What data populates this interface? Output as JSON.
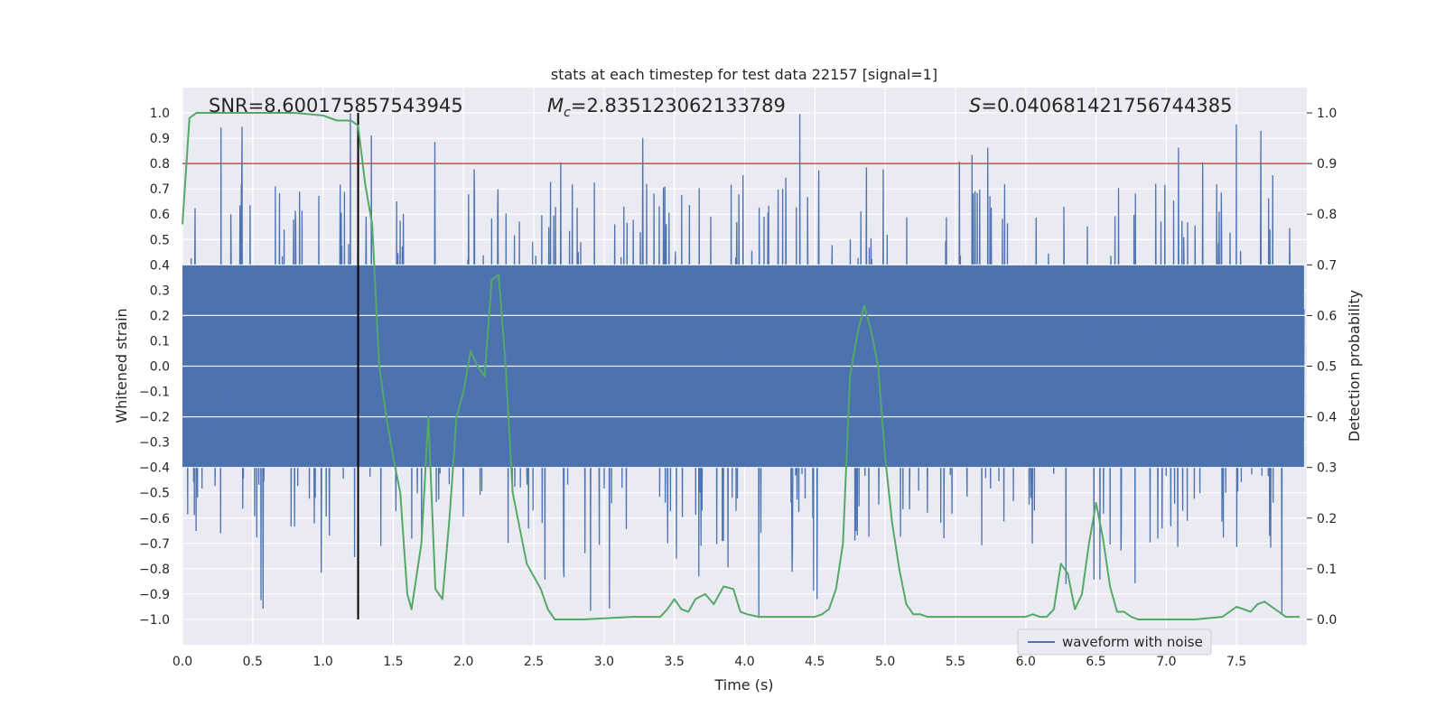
{
  "chart_data": {
    "type": "line",
    "title": "stats at each timestep for test data 22157 [signal=1]",
    "xlabel": "Time (s)",
    "ylabel": "Whitened strain",
    "y2label": "Detection probability",
    "xlim": [
      0.0,
      8.0
    ],
    "ylim": [
      -1.1,
      1.1
    ],
    "y2lim": [
      -0.05,
      1.05
    ],
    "xticks": [
      "0.0",
      "0.5",
      "1.0",
      "1.5",
      "2.0",
      "2.5",
      "3.0",
      "3.5",
      "4.0",
      "4.5",
      "5.0",
      "5.5",
      "6.0",
      "6.5",
      "7.0",
      "7.5"
    ],
    "yticks": [
      "1.0",
      "0.9",
      "0.8",
      "0.7",
      "0.6",
      "0.5",
      "0.4",
      "0.3",
      "0.2",
      "0.1",
      "0.0",
      "−0.1",
      "−0.2",
      "−0.3",
      "−0.4",
      "−0.5",
      "−0.6",
      "−0.7",
      "−0.8",
      "−0.9",
      "−1.0"
    ],
    "y2ticks": [
      "1.0",
      "0.9",
      "0.8",
      "0.7",
      "0.6",
      "0.5",
      "0.4",
      "0.3",
      "0.2",
      "0.1",
      "0.0"
    ],
    "grid": true,
    "legend_position": "lower-right",
    "annotations": {
      "snr_prefix": "SNR=",
      "snr": "8.600175857543945",
      "mc_symbol": "M",
      "mc_subscript": "c",
      "mc_eq": "=",
      "mc": "2.835123062133789",
      "s_symbol": "S",
      "s_eq": "=",
      "s": "0.040681421756744385"
    },
    "threshold": {
      "y2": 0.9,
      "color": "#c44e52"
    },
    "event_marker": {
      "x": 1.25,
      "color": "#000000"
    },
    "series": [
      {
        "name": "waveform with noise",
        "axis": "left",
        "color": "#4c72b0",
        "representation": "dense noisy strain trace, core amplitude about ±0.4, spikes up to about ±1.0"
      },
      {
        "name": "",
        "axis": "right",
        "color": "#55a868",
        "x": [
          0.0,
          0.05,
          0.1,
          0.2,
          0.4,
          0.6,
          0.8,
          1.0,
          1.1,
          1.2,
          1.25,
          1.3,
          1.35,
          1.4,
          1.45,
          1.5,
          1.55,
          1.6,
          1.63,
          1.7,
          1.75,
          1.8,
          1.85,
          1.9,
          1.95,
          2.0,
          2.05,
          2.1,
          2.15,
          2.2,
          2.25,
          2.3,
          2.35,
          2.45,
          2.55,
          2.6,
          2.65,
          2.85,
          3.2,
          3.4,
          3.45,
          3.5,
          3.55,
          3.6,
          3.65,
          3.72,
          3.78,
          3.85,
          3.92,
          3.97,
          4.02,
          4.1,
          4.3,
          4.5,
          4.55,
          4.6,
          4.65,
          4.7,
          4.75,
          4.8,
          4.85,
          4.9,
          4.95,
          5.0,
          5.05,
          5.1,
          5.15,
          5.2,
          5.25,
          5.3,
          5.4,
          5.6,
          5.8,
          6.0,
          6.05,
          6.1,
          6.15,
          6.2,
          6.25,
          6.3,
          6.35,
          6.4,
          6.45,
          6.5,
          6.55,
          6.6,
          6.65,
          6.7,
          6.75,
          6.8,
          6.85,
          6.9,
          7.0,
          7.2,
          7.4,
          7.45,
          7.5,
          7.55,
          7.6,
          7.65,
          7.7,
          7.75,
          7.8,
          7.85,
          7.9,
          7.95
        ],
        "y": [
          0.78,
          0.99,
          1.0,
          1.0,
          1.0,
          1.0,
          1.0,
          0.995,
          0.985,
          0.985,
          0.975,
          0.86,
          0.78,
          0.5,
          0.4,
          0.32,
          0.25,
          0.05,
          0.02,
          0.15,
          0.4,
          0.06,
          0.04,
          0.2,
          0.4,
          0.45,
          0.53,
          0.5,
          0.48,
          0.67,
          0.68,
          0.5,
          0.25,
          0.11,
          0.06,
          0.02,
          0.0,
          0.0,
          0.005,
          0.005,
          0.02,
          0.04,
          0.02,
          0.015,
          0.04,
          0.05,
          0.03,
          0.065,
          0.06,
          0.015,
          0.01,
          0.005,
          0.005,
          0.005,
          0.01,
          0.02,
          0.06,
          0.15,
          0.48,
          0.56,
          0.62,
          0.57,
          0.5,
          0.32,
          0.19,
          0.1,
          0.03,
          0.01,
          0.01,
          0.005,
          0.005,
          0.005,
          0.005,
          0.005,
          0.01,
          0.005,
          0.005,
          0.02,
          0.11,
          0.09,
          0.02,
          0.05,
          0.15,
          0.23,
          0.16,
          0.065,
          0.015,
          0.015,
          0.005,
          0.0,
          0.0,
          0.0,
          0.0,
          0.0,
          0.005,
          0.015,
          0.025,
          0.02,
          0.015,
          0.03,
          0.035,
          0.025,
          0.015,
          0.005,
          0.005,
          0.005
        ]
      }
    ]
  }
}
